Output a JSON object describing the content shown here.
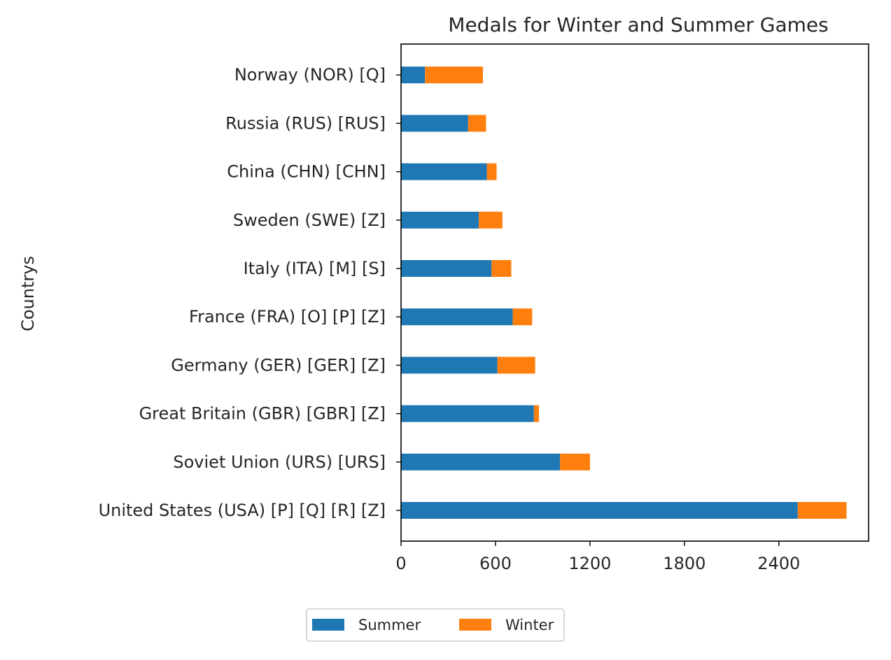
{
  "chart_data": {
    "type": "bar",
    "orientation": "horizontal",
    "stacked": true,
    "title": "Medals for Winter and Summer Games",
    "xlabel": "",
    "ylabel": "Countrys",
    "categories": [
      "United States (USA) [P] [Q] [R] [Z]",
      "Soviet Union (URS) [URS]",
      "Great Britain (GBR) [GBR] [Z]",
      "Germany (GER) [GER] [Z]",
      "France (FRA) [O] [P] [Z]",
      "Italy (ITA) [M] [S]",
      "Sweden (SWE) [Z]",
      "China (CHN) [CHN]",
      "Russia (RUS) [RUS]",
      "Norway (NOR) [Q]"
    ],
    "series": [
      {
        "name": "Summer",
        "color": "#1f77b4",
        "values": [
          2520,
          1010,
          844,
          612,
          709,
          575,
          494,
          545,
          426,
          152
        ]
      },
      {
        "name": "Winter",
        "color": "#ff7f0e",
        "values": [
          310,
          190,
          32,
          240,
          124,
          125,
          150,
          62,
          114,
          368
        ]
      }
    ],
    "xlim": [
      0,
      2970
    ],
    "xticks": [
      "0",
      "600",
      "1200",
      "1800",
      "2400"
    ],
    "grid": false,
    "legend_position": "bottom-center"
  }
}
